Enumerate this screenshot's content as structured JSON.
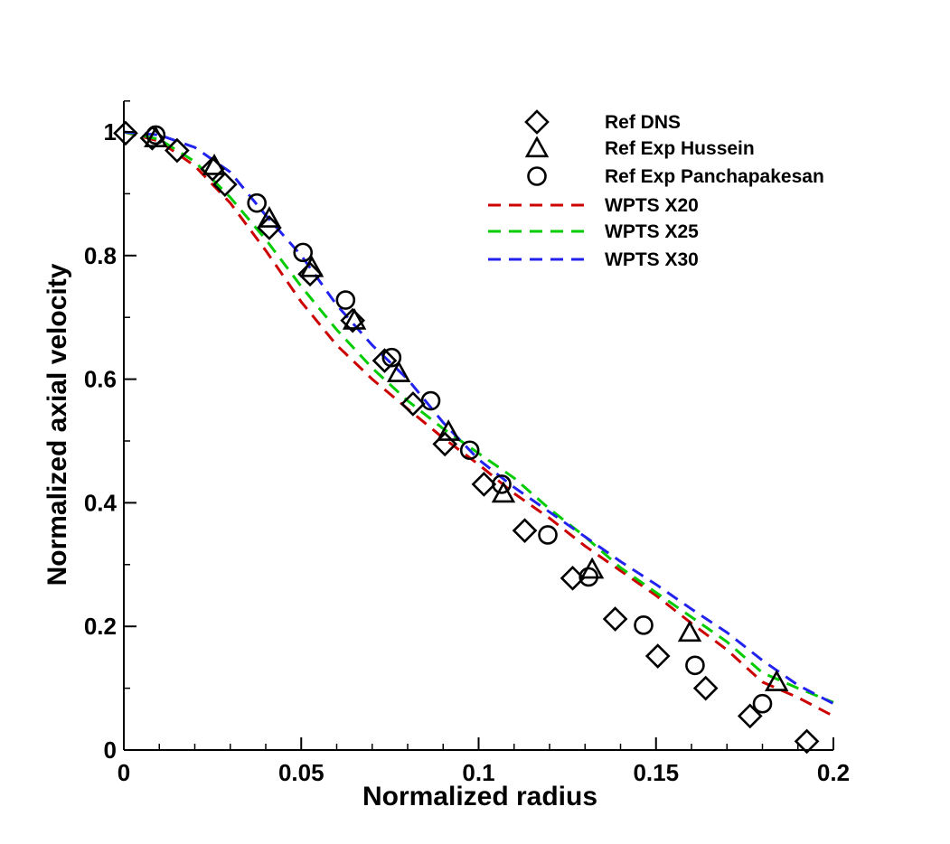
{
  "chart_data": {
    "type": "scatter",
    "title": "",
    "xlabel": "Normalized radius",
    "ylabel": "Normalized axial velocity",
    "xlim": [
      0,
      0.2
    ],
    "ylim": [
      0,
      1.0
    ],
    "xticks": [
      {
        "value": 0,
        "label": "0"
      },
      {
        "value": 0.05,
        "label": "0.05"
      },
      {
        "value": 0.1,
        "label": "0.1"
      },
      {
        "value": 0.15,
        "label": "0.15"
      },
      {
        "value": 0.2,
        "label": "0.2"
      }
    ],
    "yticks": [
      {
        "value": 0,
        "label": "0"
      },
      {
        "value": 0.2,
        "label": "0.2"
      },
      {
        "value": 0.4,
        "label": "0.4"
      },
      {
        "value": 0.6,
        "label": "0.6"
      },
      {
        "value": 0.8,
        "label": "0.8"
      },
      {
        "value": 1.0,
        "label": "1"
      }
    ],
    "grid": false,
    "legend_position": "top-right",
    "series": [
      {
        "name": "Ref DNS",
        "kind": "marker",
        "marker": "diamond",
        "color": "#000000",
        "x": [
          0.0005,
          0.008,
          0.015,
          0.025,
          0.0285,
          0.041,
          0.0525,
          0.0645,
          0.0735,
          0.0815,
          0.0905,
          0.1015,
          0.113,
          0.1265,
          0.1385,
          0.1505,
          0.164,
          0.1765,
          0.1925
        ],
        "y": [
          0.998,
          0.99,
          0.97,
          0.94,
          0.915,
          0.845,
          0.77,
          0.695,
          0.63,
          0.56,
          0.495,
          0.43,
          0.355,
          0.278,
          0.212,
          0.152,
          0.1,
          0.055,
          0.014
        ]
      },
      {
        "name": "Ref Exp Hussein",
        "kind": "marker",
        "marker": "triangle",
        "color": "#000000",
        "x": [
          0.009,
          0.0255,
          0.041,
          0.053,
          0.065,
          0.0775,
          0.0915,
          0.107,
          0.132,
          0.1595,
          0.184
        ],
        "y": [
          0.99,
          0.945,
          0.86,
          0.78,
          0.695,
          0.61,
          0.515,
          0.415,
          0.292,
          0.19,
          0.11
        ]
      },
      {
        "name": "Ref Exp Panchapakesan",
        "kind": "marker",
        "marker": "circle",
        "color": "#000000",
        "x": [
          0.009,
          0.0375,
          0.0505,
          0.0625,
          0.0755,
          0.0865,
          0.0975,
          0.1065,
          0.1195,
          0.131,
          0.1465,
          0.161,
          0.18
        ],
        "y": [
          0.995,
          0.885,
          0.805,
          0.728,
          0.635,
          0.565,
          0.485,
          0.43,
          0.348,
          0.28,
          0.202,
          0.137,
          0.075
        ]
      },
      {
        "name": "WPTS X20",
        "kind": "line",
        "dash": "dashed",
        "color": "#cc0000",
        "x": [
          0.0,
          0.01,
          0.02,
          0.03,
          0.04,
          0.05,
          0.06,
          0.07,
          0.08,
          0.09,
          0.1,
          0.11,
          0.12,
          0.13,
          0.14,
          0.15,
          0.16,
          0.17,
          0.18,
          0.19,
          0.2
        ],
        "y": [
          1.0,
          0.985,
          0.945,
          0.885,
          0.808,
          0.725,
          0.655,
          0.6,
          0.552,
          0.505,
          0.462,
          0.415,
          0.375,
          0.33,
          0.29,
          0.25,
          0.205,
          0.162,
          0.11,
          0.085,
          0.055
        ]
      },
      {
        "name": "WPTS X25",
        "kind": "line",
        "dash": "dashed",
        "color": "#00cc00",
        "x": [
          0.0,
          0.01,
          0.02,
          0.03,
          0.04,
          0.05,
          0.06,
          0.07,
          0.08,
          0.09,
          0.1,
          0.11,
          0.12,
          0.13,
          0.14,
          0.15,
          0.16,
          0.17,
          0.18,
          0.19,
          0.2
        ],
        "y": [
          1.0,
          0.988,
          0.952,
          0.894,
          0.826,
          0.75,
          0.68,
          0.618,
          0.565,
          0.52,
          0.48,
          0.44,
          0.39,
          0.345,
          0.295,
          0.255,
          0.215,
          0.175,
          0.125,
          0.1,
          0.077
        ]
      },
      {
        "name": "WPTS X30",
        "kind": "line",
        "dash": "dashed",
        "color": "#2222ee",
        "x": [
          0.0,
          0.01,
          0.02,
          0.03,
          0.04,
          0.05,
          0.06,
          0.07,
          0.08,
          0.09,
          0.1,
          0.11,
          0.12,
          0.13,
          0.14,
          0.15,
          0.16,
          0.17,
          0.18,
          0.19,
          0.2
        ],
        "y": [
          1.0,
          0.995,
          0.975,
          0.935,
          0.865,
          0.8,
          0.72,
          0.655,
          0.6,
          0.53,
          0.47,
          0.425,
          0.385,
          0.345,
          0.305,
          0.268,
          0.228,
          0.19,
          0.145,
          0.105,
          0.075
        ]
      }
    ]
  }
}
